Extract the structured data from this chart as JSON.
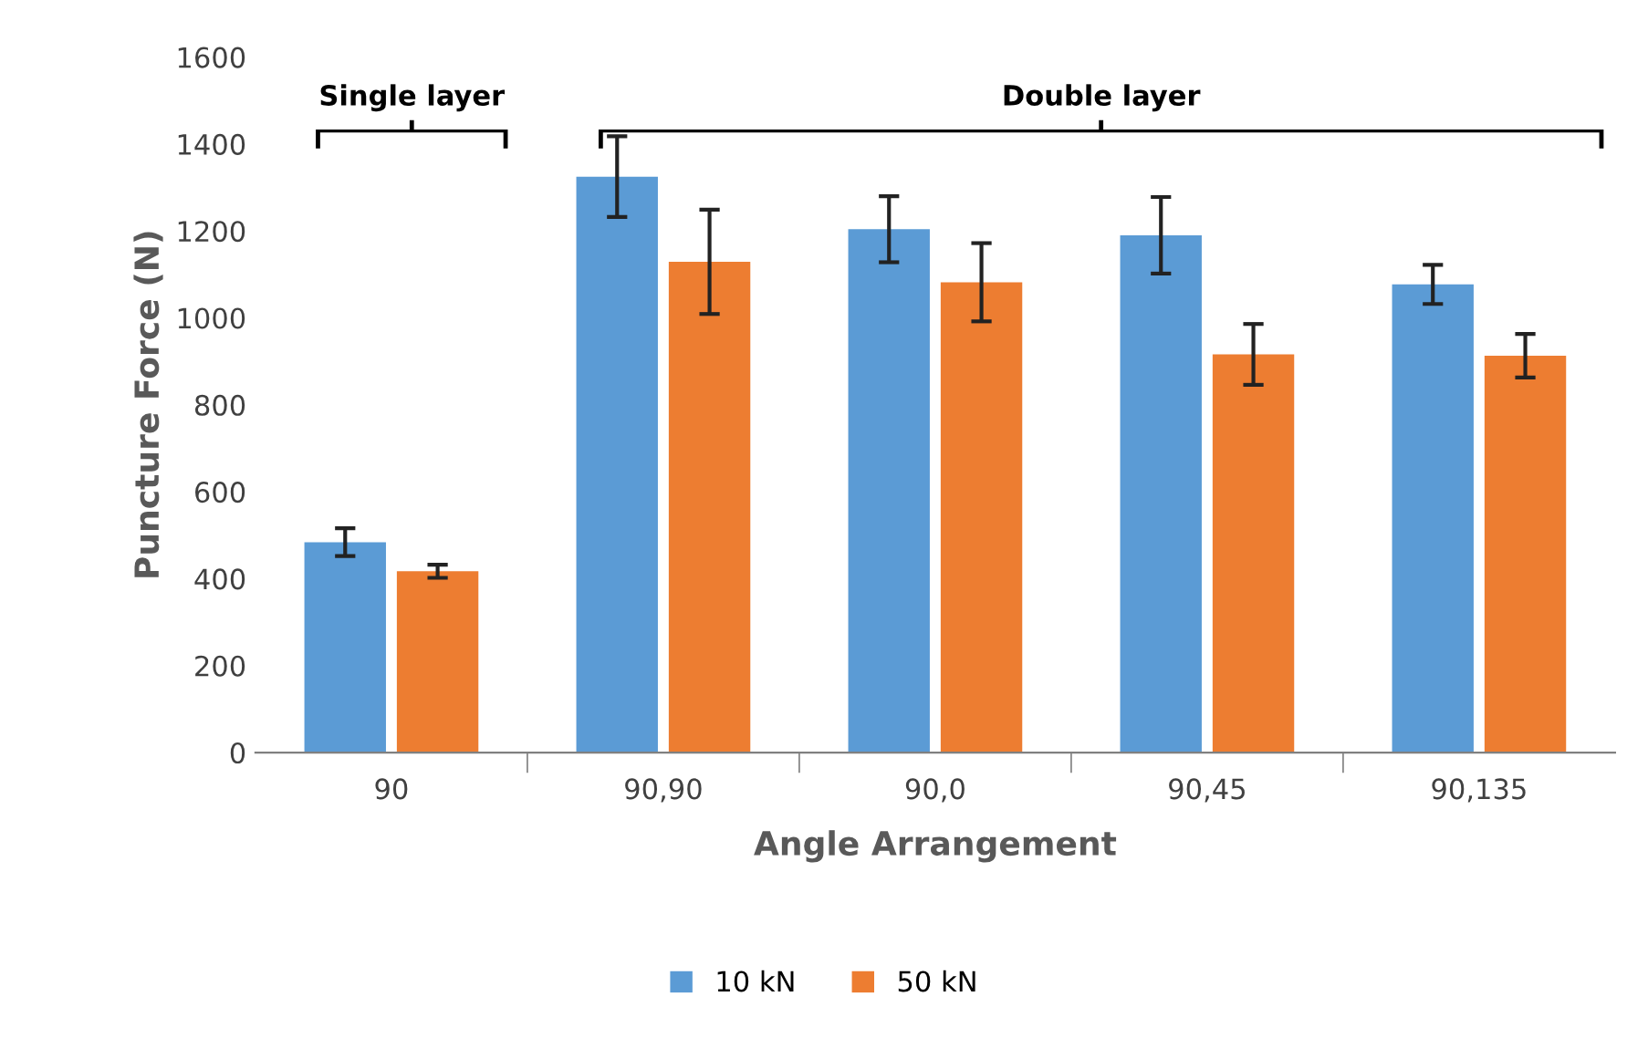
{
  "chart_data": {
    "type": "bar",
    "xlabel": "Angle Arrangement",
    "ylabel": "Puncture Force (N)",
    "categories": [
      "90",
      "90,90",
      "90,0",
      "90,45",
      "90,135"
    ],
    "series": [
      {
        "name": "10 kN",
        "color": "#5b9bd5",
        "values": [
          484,
          1325,
          1204,
          1190,
          1077
        ],
        "errors": [
          32,
          93,
          76,
          88,
          45
        ]
      },
      {
        "name": "50 kN",
        "color": "#ed7d31",
        "values": [
          417,
          1129,
          1082,
          916,
          913
        ],
        "errors": [
          15,
          120,
          90,
          70,
          50
        ]
      }
    ],
    "ylim": [
      0,
      1600
    ],
    "yticks": [
      0,
      200,
      400,
      600,
      800,
      1000,
      1200,
      1400,
      1600
    ],
    "grid": false,
    "legend": "bottom",
    "annotations": [
      "Single layer",
      "Double layer"
    ]
  }
}
